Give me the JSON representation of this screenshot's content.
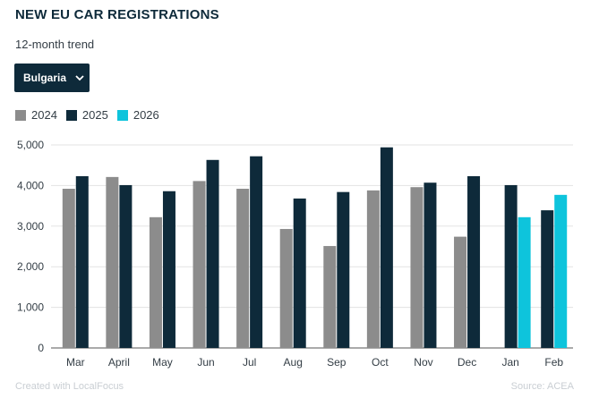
{
  "title": "NEW EU CAR REGISTRATIONS",
  "subtitle": "12-month trend",
  "dropdown": {
    "selected": "Bulgaria"
  },
  "colors": {
    "y2024": "#8c8c8c",
    "y2025": "#0e2a3a",
    "y2026": "#0ec4dc",
    "text": "#333d45",
    "grid": "#e3e3e3"
  },
  "footer": {
    "credit": "Created with LocalFocus",
    "source": "Source:  ACEA"
  },
  "chart_data": {
    "type": "bar",
    "categories": [
      "Mar",
      "April",
      "May",
      "Jun",
      "Jul",
      "Aug",
      "Sep",
      "Oct",
      "Nov",
      "Dec",
      "Jan",
      "Feb"
    ],
    "series": [
      {
        "name": "2024",
        "values": [
          3920,
          4210,
          3220,
          4110,
          3920,
          2930,
          2510,
          3880,
          3960,
          2740,
          null,
          null
        ]
      },
      {
        "name": "2025",
        "values": [
          4230,
          4010,
          3860,
          4630,
          4720,
          3680,
          3840,
          4940,
          4070,
          4230,
          4010,
          3390
        ]
      },
      {
        "name": "2026",
        "values": [
          null,
          null,
          null,
          null,
          null,
          null,
          null,
          null,
          null,
          null,
          3220,
          3770
        ]
      }
    ],
    "yticks": [
      "0",
      "1,000",
      "2,000",
      "3,000",
      "4,000",
      "5,000"
    ],
    "ylim": [
      0,
      5000
    ],
    "grid": true,
    "legend_position": "top-left"
  }
}
